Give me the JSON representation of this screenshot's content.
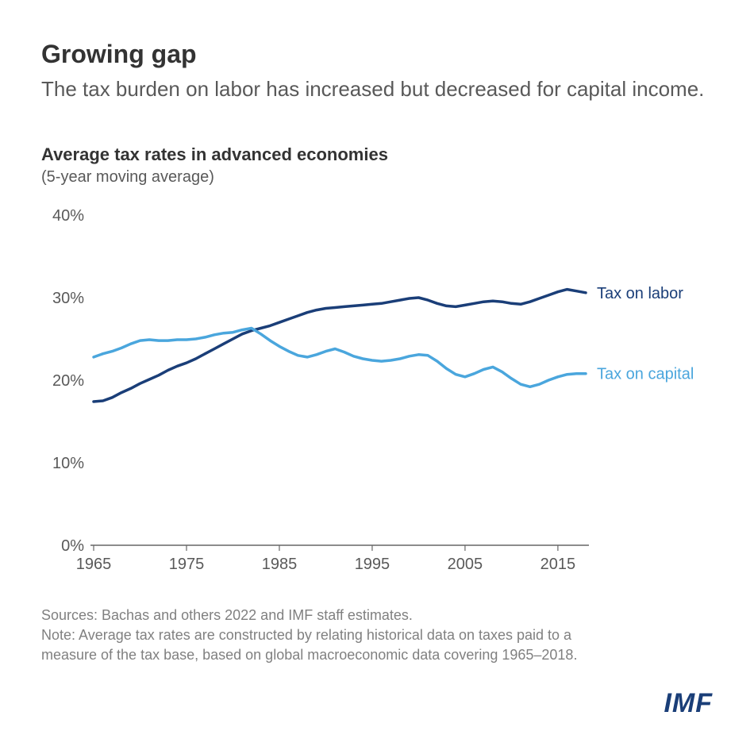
{
  "title": "Growing gap",
  "subtitle": "The tax burden on labor has increased but decreased for capital income.",
  "chart": {
    "type": "line",
    "title": "Average tax rates in advanced economies",
    "subtitle": "(5-year moving average)",
    "x": {
      "min": 1965,
      "max": 2018,
      "ticks": [
        1965,
        1975,
        1985,
        1995,
        2005,
        2015
      ]
    },
    "y": {
      "min": 0,
      "max": 40,
      "ticks": [
        0,
        10,
        20,
        30,
        40
      ],
      "suffix": "%"
    },
    "background_color": "#ffffff",
    "baseline_color": "#666666",
    "line_width": 3.5,
    "label_fontsize": 20,
    "series": [
      {
        "name": "Tax on labor",
        "label": "Tax on labor",
        "color": "#1a3e78",
        "data": [
          [
            1965,
            17.4
          ],
          [
            1966,
            17.5
          ],
          [
            1967,
            17.9
          ],
          [
            1968,
            18.5
          ],
          [
            1969,
            19.0
          ],
          [
            1970,
            19.6
          ],
          [
            1971,
            20.1
          ],
          [
            1972,
            20.6
          ],
          [
            1973,
            21.2
          ],
          [
            1974,
            21.7
          ],
          [
            1975,
            22.1
          ],
          [
            1976,
            22.6
          ],
          [
            1977,
            23.2
          ],
          [
            1978,
            23.8
          ],
          [
            1979,
            24.4
          ],
          [
            1980,
            25.0
          ],
          [
            1981,
            25.6
          ],
          [
            1982,
            26.0
          ],
          [
            1983,
            26.3
          ],
          [
            1984,
            26.6
          ],
          [
            1985,
            27.0
          ],
          [
            1986,
            27.4
          ],
          [
            1987,
            27.8
          ],
          [
            1988,
            28.2
          ],
          [
            1989,
            28.5
          ],
          [
            1990,
            28.7
          ],
          [
            1991,
            28.8
          ],
          [
            1992,
            28.9
          ],
          [
            1993,
            29.0
          ],
          [
            1994,
            29.1
          ],
          [
            1995,
            29.2
          ],
          [
            1996,
            29.3
          ],
          [
            1997,
            29.5
          ],
          [
            1998,
            29.7
          ],
          [
            1999,
            29.9
          ],
          [
            2000,
            30.0
          ],
          [
            2001,
            29.7
          ],
          [
            2002,
            29.3
          ],
          [
            2003,
            29.0
          ],
          [
            2004,
            28.9
          ],
          [
            2005,
            29.1
          ],
          [
            2006,
            29.3
          ],
          [
            2007,
            29.5
          ],
          [
            2008,
            29.6
          ],
          [
            2009,
            29.5
          ],
          [
            2010,
            29.3
          ],
          [
            2011,
            29.2
          ],
          [
            2012,
            29.5
          ],
          [
            2013,
            29.9
          ],
          [
            2014,
            30.3
          ],
          [
            2015,
            30.7
          ],
          [
            2016,
            31.0
          ],
          [
            2017,
            30.8
          ],
          [
            2018,
            30.6
          ]
        ]
      },
      {
        "name": "Tax on capital",
        "label": "Tax on capital",
        "color": "#4aa6dd",
        "data": [
          [
            1965,
            22.8
          ],
          [
            1966,
            23.2
          ],
          [
            1967,
            23.5
          ],
          [
            1968,
            23.9
          ],
          [
            1969,
            24.4
          ],
          [
            1970,
            24.8
          ],
          [
            1971,
            24.9
          ],
          [
            1972,
            24.8
          ],
          [
            1973,
            24.8
          ],
          [
            1974,
            24.9
          ],
          [
            1975,
            24.9
          ],
          [
            1976,
            25.0
          ],
          [
            1977,
            25.2
          ],
          [
            1978,
            25.5
          ],
          [
            1979,
            25.7
          ],
          [
            1980,
            25.8
          ],
          [
            1981,
            26.1
          ],
          [
            1982,
            26.3
          ],
          [
            1983,
            25.6
          ],
          [
            1984,
            24.8
          ],
          [
            1985,
            24.1
          ],
          [
            1986,
            23.5
          ],
          [
            1987,
            23.0
          ],
          [
            1988,
            22.8
          ],
          [
            1989,
            23.1
          ],
          [
            1990,
            23.5
          ],
          [
            1991,
            23.8
          ],
          [
            1992,
            23.4
          ],
          [
            1993,
            22.9
          ],
          [
            1994,
            22.6
          ],
          [
            1995,
            22.4
          ],
          [
            1996,
            22.3
          ],
          [
            1997,
            22.4
          ],
          [
            1998,
            22.6
          ],
          [
            1999,
            22.9
          ],
          [
            2000,
            23.1
          ],
          [
            2001,
            23.0
          ],
          [
            2002,
            22.3
          ],
          [
            2003,
            21.4
          ],
          [
            2004,
            20.7
          ],
          [
            2005,
            20.4
          ],
          [
            2006,
            20.8
          ],
          [
            2007,
            21.3
          ],
          [
            2008,
            21.6
          ],
          [
            2009,
            21.0
          ],
          [
            2010,
            20.2
          ],
          [
            2011,
            19.5
          ],
          [
            2012,
            19.2
          ],
          [
            2013,
            19.5
          ],
          [
            2014,
            20.0
          ],
          [
            2015,
            20.4
          ],
          [
            2016,
            20.7
          ],
          [
            2017,
            20.8
          ],
          [
            2018,
            20.8
          ]
        ]
      }
    ]
  },
  "footer": {
    "sources": "Sources: Bachas and others 2022 and IMF staff estimates.",
    "note": "Note: Average tax rates are constructed by relating historical data on taxes paid to a measure of the tax base, based on global macroeconomic data covering 1965–2018."
  },
  "logo": "IMF"
}
